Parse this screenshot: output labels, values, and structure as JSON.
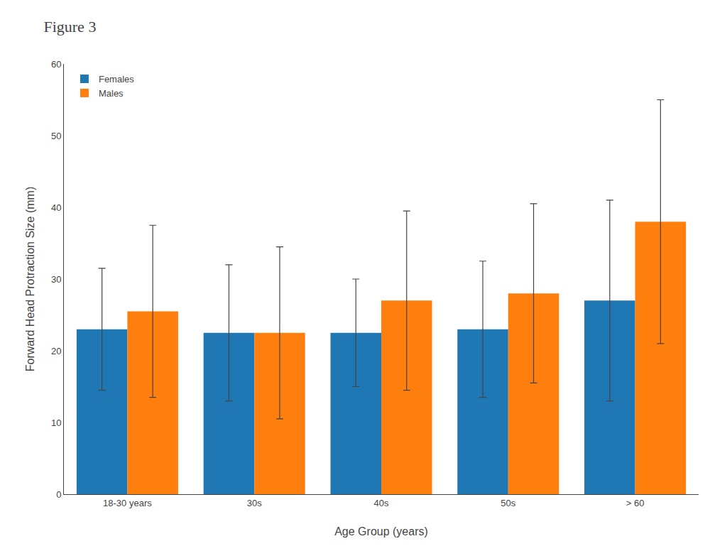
{
  "chart_data": {
    "type": "bar",
    "title": "Figure 3",
    "xlabel": "Age Group (years)",
    "ylabel": "Forward Head Protraction Size (mm)",
    "categories": [
      "18-30 years",
      "30s",
      "40s",
      "50s",
      "> 60"
    ],
    "series": [
      {
        "name": "Females",
        "values": [
          23.0,
          22.5,
          22.5,
          23.0,
          27.0
        ],
        "errors": [
          8.5,
          9.5,
          7.5,
          9.5,
          14.0
        ]
      },
      {
        "name": "Males",
        "values": [
          25.5,
          22.5,
          27.0,
          28.0,
          38.0
        ],
        "errors": [
          12.0,
          12.0,
          12.5,
          12.5,
          17.0
        ]
      }
    ],
    "ylim": [
      0,
      60
    ],
    "yticks": [
      0,
      10,
      20,
      30,
      40,
      50,
      60
    ],
    "grid": false,
    "legend": "upper left"
  }
}
